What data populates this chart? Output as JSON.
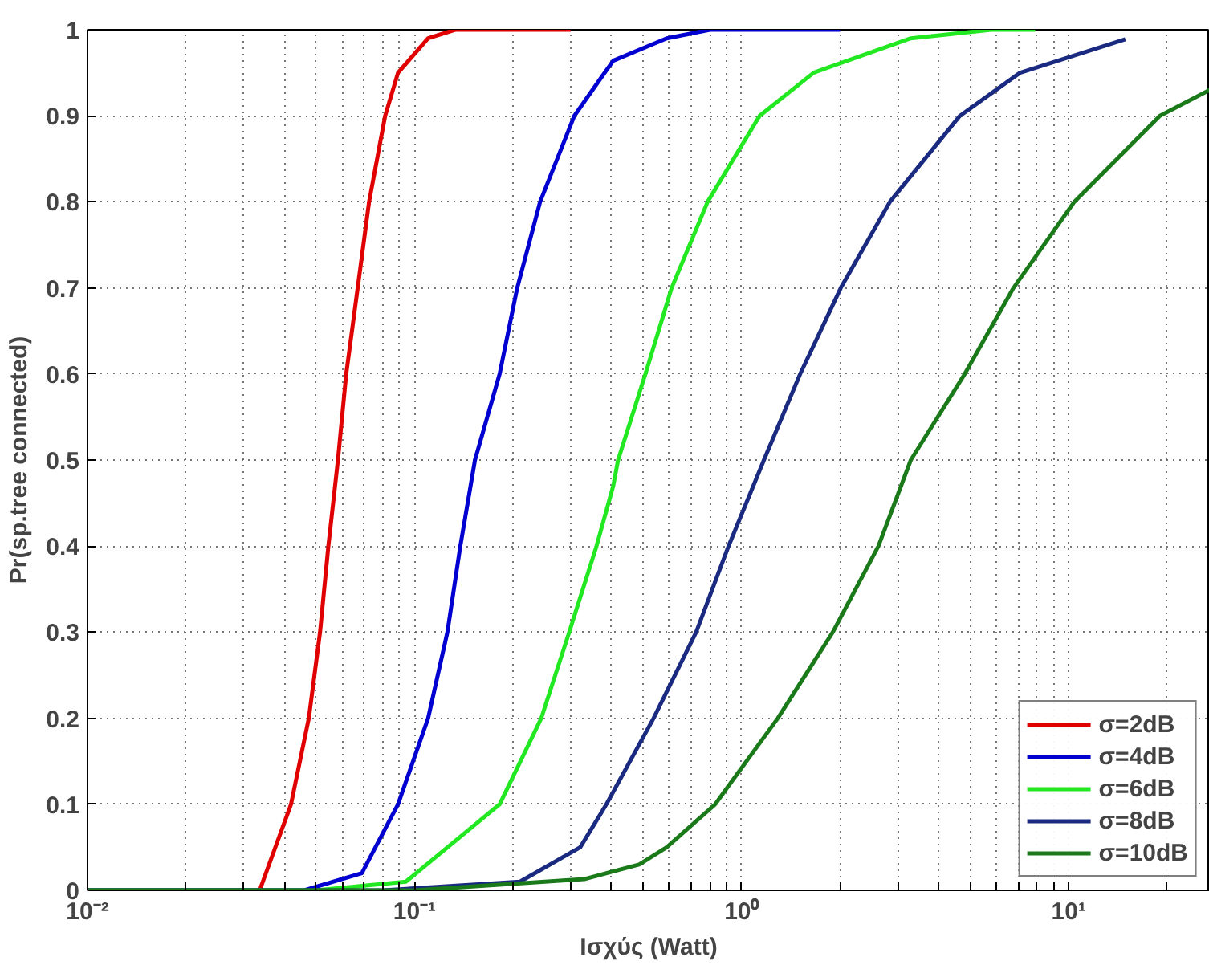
{
  "chart_data": {
    "type": "line",
    "xlabel": "Ισχύς (Watt)",
    "ylabel": "Pr(sp.tree connected)",
    "log": "x",
    "grid": true,
    "legend": "bottom right",
    "line_style": "solid",
    "marker": "none",
    "xlim": [
      0.01,
      27
    ],
    "ylim": [
      0,
      1
    ],
    "xticks": [
      {
        "value": 0.01,
        "label": "10⁻²"
      },
      {
        "value": 0.02,
        "label": null
      },
      {
        "value": 0.03,
        "label": null
      },
      {
        "value": 0.04,
        "label": null
      },
      {
        "value": 0.05,
        "label": null
      },
      {
        "value": 0.06,
        "label": null
      },
      {
        "value": 0.07,
        "label": null
      },
      {
        "value": 0.08,
        "label": null
      },
      {
        "value": 0.09,
        "label": null
      },
      {
        "value": 0.1,
        "label": "10⁻¹"
      },
      {
        "value": 0.2,
        "label": null
      },
      {
        "value": 0.3,
        "label": null
      },
      {
        "value": 0.4,
        "label": null
      },
      {
        "value": 0.5,
        "label": null
      },
      {
        "value": 0.6,
        "label": null
      },
      {
        "value": 0.7,
        "label": null
      },
      {
        "value": 0.8,
        "label": null
      },
      {
        "value": 0.9,
        "label": null
      },
      {
        "value": 1,
        "label": "10⁰"
      },
      {
        "value": 2,
        "label": null
      },
      {
        "value": 3,
        "label": null
      },
      {
        "value": 4,
        "label": null
      },
      {
        "value": 5,
        "label": null
      },
      {
        "value": 6,
        "label": null
      },
      {
        "value": 7,
        "label": null
      },
      {
        "value": 8,
        "label": null
      },
      {
        "value": 9,
        "label": null
      },
      {
        "value": 10,
        "label": "10¹"
      },
      {
        "value": 20,
        "label": null
      }
    ],
    "yticks": [
      0,
      0.1,
      0.2,
      0.3,
      0.4,
      0.5,
      0.6,
      0.7,
      0.8,
      0.9,
      1
    ],
    "series": [
      {
        "name": "σ=2dB",
        "color": "#e00000",
        "x": [
          0.01,
          0.0336,
          0.0419,
          0.0475,
          0.0514,
          0.0545,
          0.0583,
          0.0618,
          0.067,
          0.0726,
          0.0813,
          0.089,
          0.11,
          0.133,
          0.3
        ],
        "values": [
          0,
          0,
          0.1,
          0.2,
          0.3,
          0.4,
          0.5,
          0.6,
          0.7,
          0.8,
          0.9,
          0.95,
          0.99,
          1,
          1
        ]
      },
      {
        "name": "σ=4dB",
        "color": "#0000d0",
        "x": [
          0.01,
          0.046,
          0.069,
          0.089,
          0.11,
          0.126,
          0.138,
          0.153,
          0.182,
          0.206,
          0.242,
          0.308,
          0.373,
          0.405,
          0.59,
          0.8,
          2.0
        ],
        "values": [
          0,
          0,
          0.02,
          0.1,
          0.2,
          0.3,
          0.4,
          0.5,
          0.6,
          0.7,
          0.8,
          0.9,
          0.945,
          0.964,
          0.99,
          1,
          1
        ]
      },
      {
        "name": "σ=6dB",
        "color": "#22e822",
        "x": [
          0.01,
          0.05,
          0.094,
          0.182,
          0.244,
          0.297,
          0.36,
          0.405,
          0.419,
          0.508,
          0.611,
          0.787,
          1.135,
          1.66,
          3.29,
          5.8,
          7.9
        ],
        "values": [
          0,
          0,
          0.01,
          0.1,
          0.2,
          0.3,
          0.4,
          0.47,
          0.5,
          0.6,
          0.7,
          0.8,
          0.9,
          0.95,
          0.99,
          1,
          1
        ]
      },
      {
        "name": "σ=8dB",
        "color": "#1a2a80",
        "x": [
          0.01,
          0.08,
          0.21,
          0.321,
          0.386,
          0.538,
          0.726,
          0.912,
          1.17,
          1.51,
          2.01,
          2.84,
          4.65,
          7.1,
          14.9
        ],
        "values": [
          0,
          0,
          0.01,
          0.05,
          0.1,
          0.2,
          0.3,
          0.4,
          0.5,
          0.6,
          0.7,
          0.8,
          0.9,
          0.95,
          0.989
        ]
      },
      {
        "name": "σ=10dB",
        "color": "#1a7a1a",
        "x": [
          0.01,
          0.1,
          0.33,
          0.486,
          0.59,
          0.83,
          1.29,
          1.9,
          2.62,
          3.29,
          4.81,
          6.78,
          10.4,
          19.0,
          27
        ],
        "values": [
          0,
          0,
          0.013,
          0.03,
          0.05,
          0.1,
          0.2,
          0.3,
          0.4,
          0.5,
          0.6,
          0.7,
          0.8,
          0.9,
          0.93
        ]
      }
    ]
  }
}
